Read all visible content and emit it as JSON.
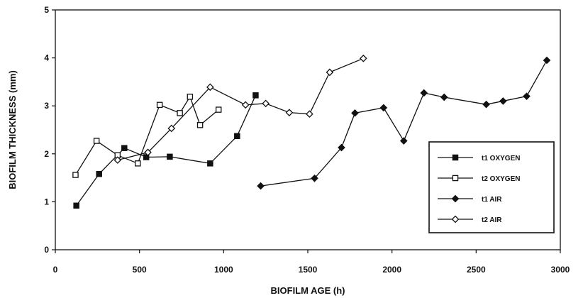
{
  "chart_data": {
    "type": "line",
    "title": "",
    "xlabel": "BIOFILM AGE (h)",
    "ylabel": "BIOFILM THICKNESS (mm)",
    "xlim": [
      0,
      3000
    ],
    "ylim": [
      0,
      5
    ],
    "xticks": [
      0,
      500,
      1000,
      1500,
      2000,
      2500,
      3000
    ],
    "yticks": [
      0,
      1,
      2,
      3,
      4,
      5
    ],
    "grid": false,
    "legend_position": "right",
    "series": [
      {
        "name": "t1 OXYGEN",
        "marker": "filled-square",
        "color": "#111111",
        "points": [
          [
            125,
            0.92
          ],
          [
            260,
            1.58
          ],
          [
            410,
            2.12
          ],
          [
            540,
            1.93
          ],
          [
            680,
            1.94
          ],
          [
            920,
            1.8
          ],
          [
            1080,
            2.37
          ],
          [
            1190,
            3.22
          ]
        ]
      },
      {
        "name": "t2 OXYGEN",
        "marker": "open-square",
        "color": "#111111",
        "points": [
          [
            120,
            1.56
          ],
          [
            245,
            2.27
          ],
          [
            370,
            1.97
          ],
          [
            490,
            1.8
          ],
          [
            620,
            3.02
          ],
          [
            740,
            2.85
          ],
          [
            800,
            3.19
          ],
          [
            860,
            2.6
          ],
          [
            970,
            2.92
          ]
        ]
      },
      {
        "name": "t1 AIR",
        "marker": "filled-diamond",
        "color": "#111111",
        "points": [
          [
            1220,
            1.33
          ],
          [
            1540,
            1.49
          ],
          [
            1700,
            2.13
          ],
          [
            1780,
            2.85
          ],
          [
            1950,
            2.96
          ],
          [
            2070,
            2.27
          ],
          [
            2190,
            3.27
          ],
          [
            2310,
            3.18
          ],
          [
            2560,
            3.03
          ],
          [
            2660,
            3.1
          ],
          [
            2800,
            3.2
          ],
          [
            2920,
            3.95
          ]
        ]
      },
      {
        "name": "t2 AIR",
        "marker": "open-diamond",
        "color": "#111111",
        "points": [
          [
            370,
            1.87
          ],
          [
            550,
            2.03
          ],
          [
            690,
            2.53
          ],
          [
            920,
            3.39
          ],
          [
            1130,
            3.02
          ],
          [
            1250,
            3.05
          ],
          [
            1390,
            2.86
          ],
          [
            1510,
            2.83
          ],
          [
            1630,
            3.7
          ],
          [
            1830,
            3.99
          ]
        ]
      }
    ]
  }
}
